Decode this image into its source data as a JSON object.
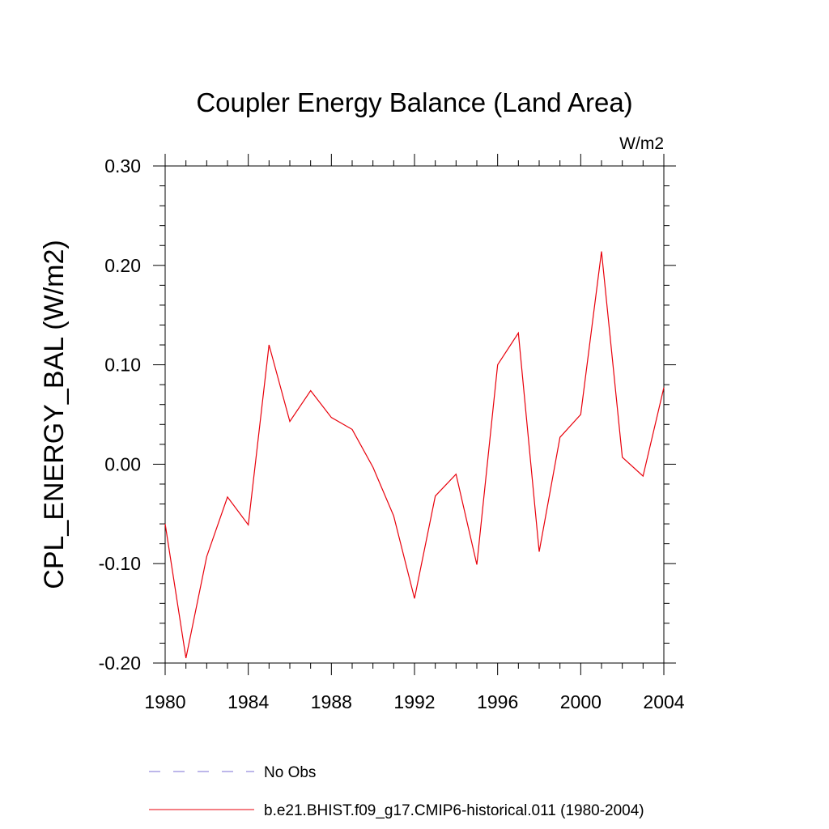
{
  "chart_data": {
    "type": "line",
    "title": "Coupler Energy Balance (Land Area)",
    "units": "W/m2",
    "ylabel": "CPL_ENERGY_BAL  (W/m2)",
    "xlabel": "",
    "xlim": [
      1980,
      2004
    ],
    "ylim": [
      -0.2,
      0.3
    ],
    "x_ticks": [
      1980,
      1984,
      1988,
      1992,
      1996,
      2000,
      2004
    ],
    "x_tick_labels": [
      "1980",
      "1984",
      "1988",
      "1992",
      "1996",
      "2000",
      "2004"
    ],
    "y_ticks": [
      -0.2,
      -0.1,
      0.0,
      0.1,
      0.2,
      0.3
    ],
    "y_tick_labels": [
      "-0.20",
      "-0.10",
      "0.00",
      "0.10",
      "0.20",
      "0.30"
    ],
    "grid": false,
    "legend_position": "bottom",
    "series": [
      {
        "name": "b.e21.BHIST.f09_g17.CMIP6-historical.011 (1980-2004)",
        "color": "#e8000b",
        "style": "solid",
        "x": [
          1980,
          1981,
          1982,
          1983,
          1984,
          1985,
          1986,
          1987,
          1988,
          1989,
          1990,
          1991,
          1992,
          1993,
          1994,
          1995,
          1996,
          1997,
          1998,
          1999,
          2000,
          2001,
          2002,
          2003,
          2004
        ],
        "values": [
          -0.06,
          -0.195,
          -0.093,
          -0.033,
          -0.061,
          0.12,
          0.043,
          0.074,
          0.047,
          0.035,
          -0.003,
          -0.052,
          -0.135,
          -0.032,
          -0.01,
          -0.101,
          0.1,
          0.132,
          -0.088,
          0.027,
          0.05,
          0.214,
          0.007,
          -0.012,
          0.077
        ]
      }
    ],
    "legend": [
      {
        "label": "No Obs",
        "color": "#7b6fd6",
        "style": "dashed"
      },
      {
        "label": "b.e21.BHIST.f09_g17.CMIP6-historical.011 (1980-2004)",
        "color": "#e8000b",
        "style": "solid"
      }
    ]
  }
}
